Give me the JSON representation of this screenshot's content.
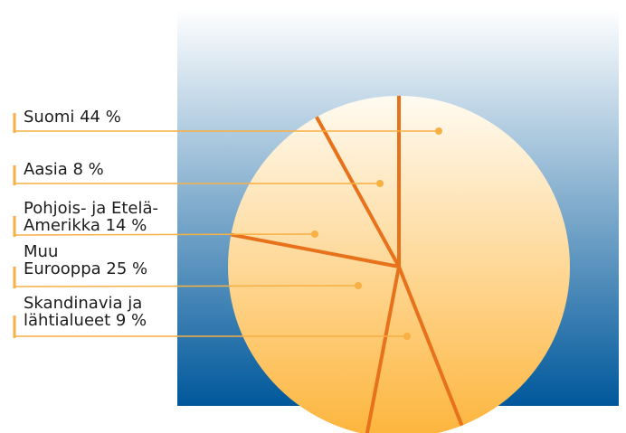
{
  "chart_data": {
    "type": "pie",
    "title": "",
    "slices": [
      {
        "label": "Suomi",
        "value": 44,
        "lines": [
          "Suomi 44 %"
        ]
      },
      {
        "label": "Aasia",
        "value": 8,
        "lines": [
          "Aasia 8 %"
        ]
      },
      {
        "label": "Pohjois- ja Etelä-Amerikka",
        "value": 14,
        "lines": [
          "Pohjois- ja Etelä-",
          "Amerikka 14 %"
        ]
      },
      {
        "label": "Muu Eurooppa",
        "value": 25,
        "lines": [
          "Muu",
          "Eurooppa 25 %"
        ]
      },
      {
        "label": "Skandinavia ja lähtialueet",
        "value": 9,
        "lines": [
          "Skandinavia ja",
          "lähtialueet 9 %"
        ]
      }
    ],
    "unit": "%",
    "colors": {
      "background_top": "#ffffff",
      "background_bottom": "#00589b",
      "pie_top": "#fffbf2",
      "pie_bottom": "#fdb53c",
      "divider": "#e8721c",
      "leader": "#f7b044"
    }
  }
}
